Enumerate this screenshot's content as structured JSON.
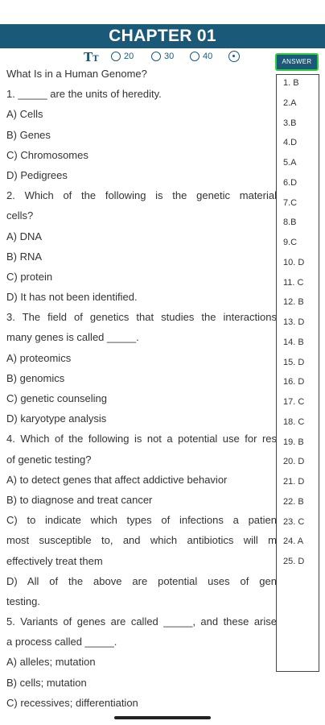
{
  "header": {
    "title": "CHAPTER 01"
  },
  "toolbar": {
    "font_icon_big": "T",
    "font_icon_small": "T",
    "radio_options": [
      "20",
      "30",
      "40"
    ],
    "answer_button": "ANSWER"
  },
  "content_lines": [
    "What Is in a Human Genome?",
    "1. _____ are the units of heredity.",
    "A) Cells",
    "B) Genes",
    "C) Chromosomes",
    "D) Pedigrees",
    "2. Which of the following is the genetic material",
    "cells?",
    "A) DNA",
    "B) RNA",
    "C) protein",
    "D) It has not been identified.",
    "3. The field of genetics that studies the interactions",
    "many genes is called _____.",
    "A) proteomics",
    "B) genomics",
    "C) genetic counseling",
    "D) karyotype analysis",
    "4. Which of the following is not a potential use for res",
    "of genetic testing?",
    "A) to detect genes that affect addictive behavior",
    "B) to diagnose and treat cancer",
    "C) to indicate which types of infections a patien",
    "most susceptible to, and which antibiotics will m",
    "effectively treat them",
    "D) All of the above are potential uses of gen",
    "testing.",
    "5. Variants of genes are called _____, and these arise",
    "a process called _____.",
    "A) alleles; mutation",
    "B) cells; mutation",
    "C) recessives; differentiation"
  ],
  "answers": [
    "1. B",
    "2.A",
    "3.B",
    "4.D",
    "5.A",
    "6.D",
    "7.C",
    "8.B",
    "9.C",
    "10. D",
    "11. C",
    "12. B",
    "13. D",
    "14. B",
    "15. D",
    "16. D",
    "17. C",
    "18. C",
    "19. B",
    "20. D",
    "21. D",
    "22. B",
    "23. C",
    "24. A",
    "25. D"
  ]
}
